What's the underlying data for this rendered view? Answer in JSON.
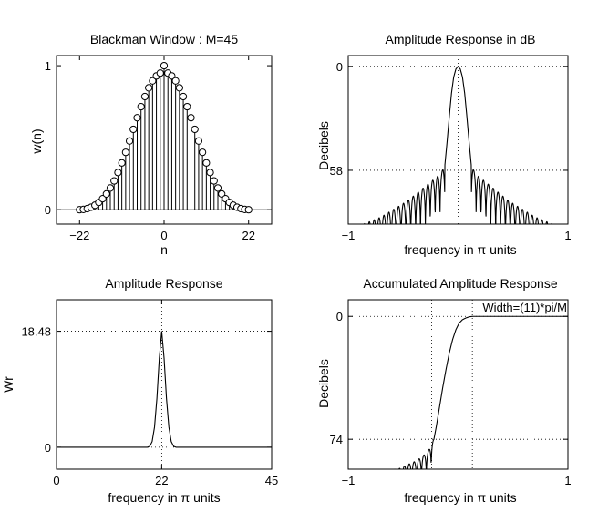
{
  "chart_data": [
    {
      "type": "stem",
      "title": "Blackman Window : M=45",
      "xlabel": "n",
      "ylabel": "w(n)",
      "xlim": [
        -28,
        28
      ],
      "ylim": [
        -0.1,
        1.07
      ],
      "xticks": [
        -22,
        0,
        22
      ],
      "yticks": [
        0,
        1
      ],
      "grid": false,
      "n": [
        -22,
        -21,
        -20,
        -19,
        -18,
        -17,
        -16,
        -15,
        -14,
        -13,
        -12,
        -11,
        -10,
        -9,
        -8,
        -7,
        -6,
        -5,
        -4,
        -3,
        -2,
        -1,
        0,
        1,
        2,
        3,
        4,
        5,
        6,
        7,
        8,
        9,
        10,
        11,
        12,
        13,
        14,
        15,
        16,
        17,
        18,
        19,
        20,
        21,
        22
      ],
      "values": [
        0,
        0.0018,
        0.0073,
        0.0169,
        0.0311,
        0.0507,
        0.0765,
        0.1094,
        0.1504,
        0.2,
        0.2584,
        0.325,
        0.3985,
        0.477,
        0.558,
        0.6385,
        0.7154,
        0.7856,
        0.8461,
        0.8945,
        0.929,
        0.9484,
        1.0,
        0.9484,
        0.929,
        0.8945,
        0.8461,
        0.7856,
        0.7154,
        0.6385,
        0.558,
        0.477,
        0.3985,
        0.325,
        0.2584,
        0.2,
        0.1504,
        0.1094,
        0.0765,
        0.0507,
        0.0311,
        0.0169,
        0.0073,
        0.0018,
        0
      ]
    },
    {
      "type": "line",
      "title": "Amplitude Response in dB",
      "xlabel": "frequency in π units",
      "ylabel": "Decibels",
      "xlim": [
        -1,
        1
      ],
      "ylim": [
        -88,
        6
      ],
      "xticks": [
        -1,
        1
      ],
      "yticks": [
        0,
        -58
      ],
      "ytick_labels": [
        "0",
        "58"
      ],
      "grid": "dotted at x=0 and y=0,-58",
      "series": [
        {
          "x": [
            -0.86,
            -0.82,
            -0.78,
            -0.74,
            -0.7,
            -0.66,
            -0.62,
            -0.58,
            -0.54,
            -0.5,
            -0.46,
            -0.42,
            -0.38,
            -0.34,
            -0.3,
            -0.26,
            -0.22,
            -0.18,
            -0.15,
            -0.135,
            -0.12,
            -0.1,
            -0.08,
            -0.06,
            -0.04,
            -0.02,
            0,
            0.02,
            0.04,
            0.06,
            0.08,
            0.1,
            0.12,
            0.135,
            0.15,
            0.18,
            0.22,
            0.26,
            0.3,
            0.34,
            0.38,
            0.42,
            0.46,
            0.5,
            0.54,
            0.58,
            0.62,
            0.66,
            0.7,
            0.74,
            0.78,
            0.82,
            0.86
          ],
          "y": [
            -88,
            -87,
            -86,
            -85,
            -84,
            -82.5,
            -81,
            -79.5,
            -78,
            -76.5,
            -75,
            -73,
            -71,
            -69,
            -67,
            -65,
            -63,
            -61,
            -59,
            -57,
            -55,
            -42,
            -28,
            -15,
            -6,
            -1.5,
            0,
            -1.5,
            -6,
            -15,
            -28,
            -42,
            -55,
            -57,
            -59,
            -61,
            -63,
            -65,
            -67,
            -69,
            -71,
            -73,
            -75,
            -76.5,
            -78,
            -79.5,
            -81,
            -82.5,
            -84,
            -85,
            -86,
            -87,
            -88
          ]
        }
      ]
    },
    {
      "type": "line",
      "title": "Amplitude Response",
      "xlabel": "frequency in π units",
      "ylabel": "Wr",
      "xlim": [
        0,
        45
      ],
      "ylim": [
        -3.5,
        23.5
      ],
      "xticks": [
        0,
        22,
        45
      ],
      "yticks": [
        0,
        18.48
      ],
      "ytick_labels": [
        "0",
        "18.48"
      ],
      "grid": "dotted at x=22 and y=0,18.48",
      "series": [
        {
          "x": [
            0,
            19,
            19.5,
            20,
            20.5,
            21,
            21.5,
            22,
            22.5,
            23,
            23.5,
            24,
            24.5,
            25,
            45
          ],
          "y": [
            0,
            0,
            0.15,
            0.9,
            3.2,
            7.8,
            14.2,
            18.48,
            14.2,
            7.8,
            3.2,
            0.9,
            0.15,
            0,
            0
          ]
        }
      ]
    },
    {
      "type": "line",
      "title": "Accumulated Amplitude Response",
      "xlabel": "frequency in π units",
      "ylabel": "Decibels",
      "xlim": [
        -1,
        1
      ],
      "ylim": [
        -92,
        10
      ],
      "xticks": [
        -1,
        1
      ],
      "yticks": [
        0,
        -74
      ],
      "ytick_labels": [
        "0",
        "74"
      ],
      "grid": "dotted at x=-0.24,0.13 and y=0,-74",
      "annotation": "Width=(11)*pi/M",
      "series": [
        {
          "x": [
            -0.55,
            -0.45,
            -0.38,
            -0.32,
            -0.27,
            -0.24,
            -0.22,
            -0.2,
            -0.17,
            -0.14,
            -0.11,
            -0.08,
            -0.05,
            -0.02,
            0.01,
            0.04,
            0.07,
            0.1,
            0.13,
            0.16,
            0.2,
            0.5,
            1.0
          ],
          "y": [
            -92,
            -89,
            -87,
            -84,
            -81,
            -76,
            -74,
            -67,
            -55,
            -43,
            -32,
            -22,
            -14,
            -8,
            -4,
            -2,
            -1,
            -0.3,
            0,
            0,
            0,
            0,
            0
          ]
        }
      ]
    }
  ]
}
